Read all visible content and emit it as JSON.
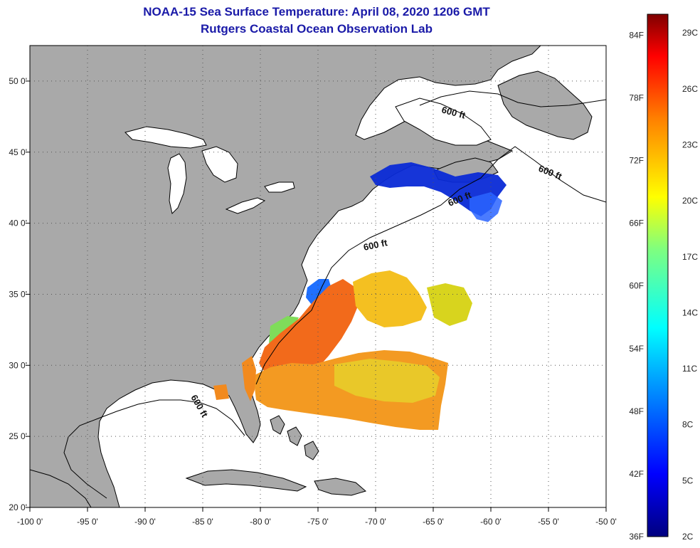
{
  "title": "NOAA-15 Sea Surface Temperature:  April 08, 2020 1206 GMT",
  "subtitle": "Rutgers Coastal Ocean Observation Lab",
  "axes": {
    "lon_labels": [
      "-100 0'",
      "-95 0'",
      "-90 0'",
      "-85 0'",
      "-80 0'",
      "-75 0'",
      "-70 0'",
      "-65 0'",
      "-60 0'",
      "-55 0'",
      "-50 0'"
    ],
    "lon_values": [
      -100,
      -95,
      -90,
      -85,
      -80,
      -75,
      -70,
      -65,
      -60,
      -55,
      -50
    ],
    "lat_labels": [
      "50 0'",
      "45 0'",
      "40 0'",
      "35 0'",
      "30 0'",
      "25 0'",
      "20 0'"
    ],
    "lat_values": [
      50,
      45,
      40,
      35,
      30,
      25,
      20
    ],
    "lon_range": [
      -100,
      -50
    ],
    "lat_range": [
      20,
      52.5
    ]
  },
  "contour": {
    "label": "600 ft",
    "label_2": "600 ft",
    "label_3": "600 ft",
    "label_4": "600 ft",
    "label_5": "600 ft"
  },
  "colorbar": {
    "f_labels": [
      "84F",
      "78F",
      "72F",
      "66F",
      "60F",
      "54F",
      "48F",
      "42F",
      "36F"
    ],
    "c_labels": [
      "29C",
      "26C",
      "23C",
      "20C",
      "17C",
      "14C",
      "11C",
      "8C",
      "5C",
      "2C"
    ],
    "f_min": 36,
    "f_max": 86,
    "c_min": 2,
    "c_max": 30
  },
  "colors": {
    "land": "#a9a9a9",
    "ocean_nodata": "#ffffff",
    "title": "#1a1aa8",
    "coast": "#000000"
  }
}
